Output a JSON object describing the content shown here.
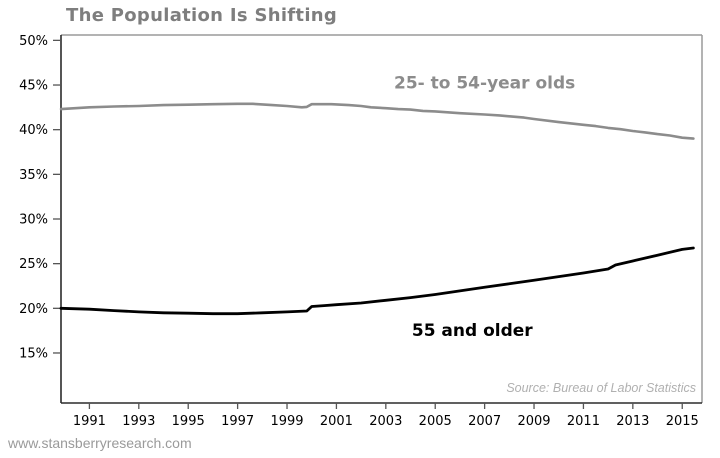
{
  "title": "The Population Is Shifting",
  "watermark": "www.stansberryresearch.com",
  "colors": {
    "title": "#7e7e7e",
    "axis_dark": "#2b2b2b",
    "axis_light": "#9a9a9a",
    "tick": "#555555",
    "tick_label": "#000000",
    "source": "#b0b0b0",
    "watermark": "#9a9a9a",
    "gray_series": "#8c8c8c",
    "black_series": "#000000"
  },
  "chart_data": {
    "type": "line",
    "title": "The Population Is Shifting",
    "xlabel": "",
    "ylabel": "",
    "grid": false,
    "legend": "inline-labels",
    "xlim": [
      1989.85,
      2015.8
    ],
    "ylim": [
      9.4,
      50.6
    ],
    "x_ticks": [
      {
        "v": 1991,
        "label": "1991"
      },
      {
        "v": 1993,
        "label": "1993"
      },
      {
        "v": 1995,
        "label": "1995"
      },
      {
        "v": 1997,
        "label": "1997"
      },
      {
        "v": 1999,
        "label": "1999"
      },
      {
        "v": 2001,
        "label": "2001"
      },
      {
        "v": 2003,
        "label": "2003"
      },
      {
        "v": 2005,
        "label": "2005"
      },
      {
        "v": 2007,
        "label": "2007"
      },
      {
        "v": 2009,
        "label": "2009"
      },
      {
        "v": 2011,
        "label": "2011"
      },
      {
        "v": 2013,
        "label": "2013"
      },
      {
        "v": 2015,
        "label": "2015"
      }
    ],
    "y_ticks": [
      {
        "v": 50,
        "label": "50%"
      },
      {
        "v": 45,
        "label": "45%"
      },
      {
        "v": 40,
        "label": "40%"
      },
      {
        "v": 35,
        "label": "35%"
      },
      {
        "v": 30,
        "label": "30%"
      },
      {
        "v": 25,
        "label": "25%"
      },
      {
        "v": 20,
        "label": "20%"
      },
      {
        "v": 15,
        "label": "15%"
      }
    ],
    "series": [
      {
        "name": "25- to 54-year olds",
        "color": "#8c8c8c",
        "width": 2.6,
        "points": [
          [
            1989.85,
            42.3
          ],
          [
            1991,
            42.5
          ],
          [
            1992,
            42.6
          ],
          [
            1993,
            42.65
          ],
          [
            1994,
            42.75
          ],
          [
            1995,
            42.8
          ],
          [
            1996,
            42.85
          ],
          [
            1997,
            42.9
          ],
          [
            1997.6,
            42.9
          ],
          [
            1998.4,
            42.75
          ],
          [
            1999,
            42.65
          ],
          [
            1999.6,
            42.5
          ],
          [
            1999.8,
            42.55
          ],
          [
            2000,
            42.85
          ],
          [
            2000.8,
            42.85
          ],
          [
            2001.5,
            42.75
          ],
          [
            2002,
            42.65
          ],
          [
            2002.4,
            42.5
          ],
          [
            2003,
            42.4
          ],
          [
            2003.5,
            42.3
          ],
          [
            2004,
            42.25
          ],
          [
            2004.5,
            42.1
          ],
          [
            2005,
            42.05
          ],
          [
            2006,
            41.85
          ],
          [
            2007,
            41.7
          ],
          [
            2007.6,
            41.6
          ],
          [
            2008,
            41.5
          ],
          [
            2008.6,
            41.35
          ],
          [
            2009,
            41.2
          ],
          [
            2010,
            40.85
          ],
          [
            2010.5,
            40.7
          ],
          [
            2011,
            40.55
          ],
          [
            2011.5,
            40.4
          ],
          [
            2012,
            40.2
          ],
          [
            2012.5,
            40.05
          ],
          [
            2013,
            39.85
          ],
          [
            2013.5,
            39.7
          ],
          [
            2014,
            39.5
          ],
          [
            2014.5,
            39.35
          ],
          [
            2015,
            39.1
          ],
          [
            2015.45,
            39.0
          ]
        ]
      },
      {
        "name": "55 and older",
        "color": "#000000",
        "width": 2.8,
        "points": [
          [
            1989.85,
            20.0
          ],
          [
            1990.5,
            19.95
          ],
          [
            1991,
            19.9
          ],
          [
            1992,
            19.75
          ],
          [
            1993,
            19.6
          ],
          [
            1994,
            19.5
          ],
          [
            1995,
            19.45
          ],
          [
            1996,
            19.4
          ],
          [
            1997,
            19.4
          ],
          [
            1998,
            19.5
          ],
          [
            1999,
            19.6
          ],
          [
            1999.8,
            19.7
          ],
          [
            2000,
            20.2
          ],
          [
            2000.5,
            20.3
          ],
          [
            2001,
            20.4
          ],
          [
            2002,
            20.6
          ],
          [
            2003,
            20.9
          ],
          [
            2004,
            21.2
          ],
          [
            2005,
            21.55
          ],
          [
            2006,
            21.95
          ],
          [
            2007,
            22.35
          ],
          [
            2008,
            22.75
          ],
          [
            2009,
            23.15
          ],
          [
            2010,
            23.55
          ],
          [
            2011,
            23.95
          ],
          [
            2012,
            24.4
          ],
          [
            2012.3,
            24.85
          ],
          [
            2013,
            25.3
          ],
          [
            2014,
            25.95
          ],
          [
            2015,
            26.6
          ],
          [
            2015.45,
            26.75
          ]
        ]
      }
    ],
    "annotations": [
      {
        "text": "25- to 54-year olds",
        "x": 2007.0,
        "y": 45.3,
        "color": "#8c8c8c"
      },
      {
        "text": "55 and older",
        "x": 2006.5,
        "y": 17.6,
        "color": "#000000"
      }
    ],
    "source_note": "Source: Bureau of Labor Statistics"
  }
}
